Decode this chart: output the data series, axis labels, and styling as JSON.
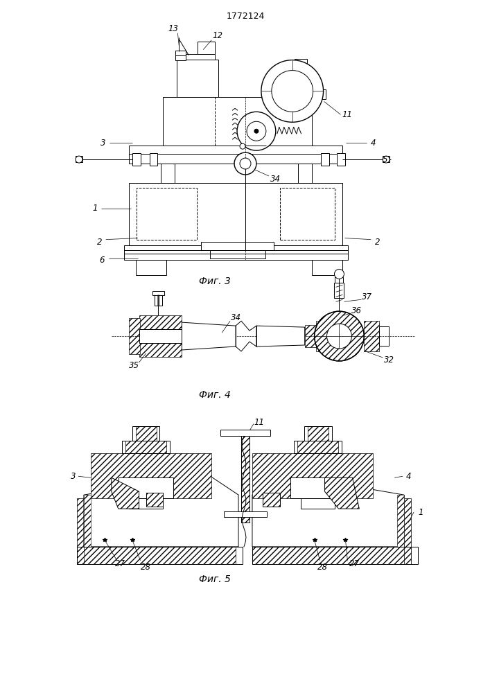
{
  "title": "1772124",
  "bg": "#ffffff",
  "lc": "#000000",
  "fig3_cap": "Фиг. 3",
  "fig4_cap": "Фиг. 4",
  "fig5_cap": "Фиг. 5"
}
